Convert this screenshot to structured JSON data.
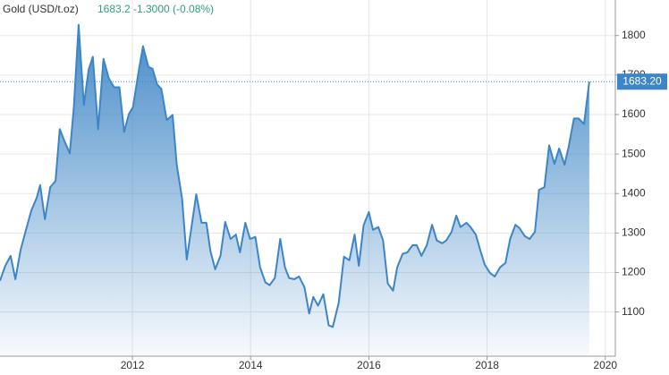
{
  "chart_data": {
    "type": "area",
    "title": "Gold (USD/t.oz)",
    "price": "1683.2",
    "change": "-1.3000 (-0.08%)",
    "last_value_label": "1683.20",
    "color": "#3d85c6",
    "grid": true,
    "x": [
      2009.76,
      2009.85,
      2009.94,
      2010.02,
      2010.11,
      2010.2,
      2010.29,
      2010.38,
      2010.44,
      2010.52,
      2010.61,
      2010.7,
      2010.77,
      2010.86,
      2010.94,
      2011.01,
      2011.09,
      2011.18,
      2011.26,
      2011.33,
      2011.42,
      2011.51,
      2011.6,
      2011.69,
      2011.78,
      2011.86,
      2011.94,
      2012.01,
      2012.1,
      2012.18,
      2012.27,
      2012.34,
      2012.42,
      2012.49,
      2012.58,
      2012.68,
      2012.75,
      2012.84,
      2012.92,
      2013.01,
      2013.08,
      2013.17,
      2013.25,
      2013.32,
      2013.4,
      2013.49,
      2013.57,
      2013.66,
      2013.75,
      2013.82,
      2013.91,
      2013.99,
      2014.08,
      2014.16,
      2014.25,
      2014.32,
      2014.41,
      2014.5,
      2014.58,
      2014.65,
      2014.74,
      2014.82,
      2014.91,
      2014.99,
      2015.06,
      2015.14,
      2015.23,
      2015.32,
      2015.39,
      2015.49,
      2015.58,
      2015.67,
      2015.76,
      2015.83,
      2015.91,
      2016.0,
      2016.07,
      2016.16,
      2016.24,
      2016.32,
      2016.41,
      2016.48,
      2016.57,
      2016.65,
      2016.74,
      2016.81,
      2016.89,
      2016.98,
      2017.07,
      2017.15,
      2017.24,
      2017.31,
      2017.4,
      2017.48,
      2017.55,
      2017.65,
      2017.72,
      2017.81,
      2017.89,
      2017.96,
      2018.05,
      2018.13,
      2018.22,
      2018.31,
      2018.39,
      2018.48,
      2018.55,
      2018.64,
      2018.72,
      2018.81,
      2018.88,
      2018.97,
      2019.05,
      2019.14,
      2019.22,
      2019.31,
      2019.38,
      2019.47,
      2019.55,
      2019.64,
      2019.73
    ],
    "values": [
      1179,
      1217,
      1242,
      1183,
      1258,
      1308,
      1357,
      1389,
      1421,
      1335,
      1416,
      1432,
      1563,
      1529,
      1502,
      1619,
      1827,
      1624,
      1714,
      1746,
      1563,
      1741,
      1692,
      1669,
      1669,
      1556,
      1601,
      1619,
      1705,
      1773,
      1721,
      1716,
      1676,
      1665,
      1586,
      1599,
      1473,
      1387,
      1233,
      1326,
      1398,
      1326,
      1326,
      1254,
      1208,
      1242,
      1328,
      1285,
      1296,
      1251,
      1326,
      1285,
      1290,
      1213,
      1175,
      1168,
      1186,
      1285,
      1213,
      1186,
      1183,
      1190,
      1163,
      1096,
      1138,
      1116,
      1145,
      1066,
      1062,
      1123,
      1240,
      1231,
      1296,
      1217,
      1319,
      1353,
      1308,
      1315,
      1281,
      1172,
      1154,
      1213,
      1247,
      1251,
      1269,
      1269,
      1242,
      1269,
      1321,
      1281,
      1274,
      1281,
      1303,
      1344,
      1315,
      1326,
      1315,
      1296,
      1254,
      1220,
      1199,
      1190,
      1213,
      1224,
      1285,
      1321,
      1312,
      1292,
      1285,
      1303,
      1409,
      1416,
      1522,
      1475,
      1514,
      1473,
      1518,
      1590,
      1590,
      1576,
      1683.2
    ],
    "xlim": [
      2009.76,
      2020.17
    ],
    "xticks": [
      2012,
      2014,
      2016,
      2018,
      2020
    ],
    "ylim": [
      988,
      1890
    ],
    "yticks": [
      1100,
      1200,
      1300,
      1400,
      1500,
      1600,
      1700,
      1800
    ]
  }
}
